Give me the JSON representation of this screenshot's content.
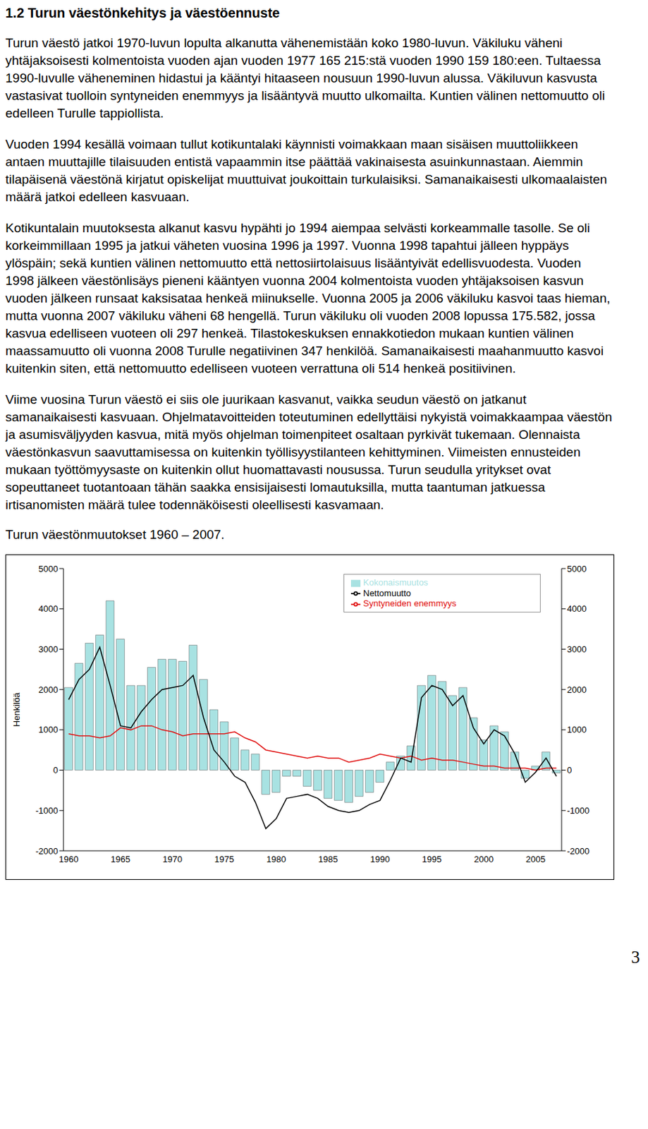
{
  "heading": "1.2 Turun väestönkehitys ja väestöennuste",
  "paragraphs": [
    "Turun väestö jatkoi 1970-luvun lopulta alkanutta vähenemistään koko 1980-luvun. Väkiluku väheni yhtäjaksoisesti kolmentoista vuoden ajan vuoden 1977 165 215:stä vuoden 1990 159 180:een. Tultaessa 1990-luvulle väheneminen hidastui ja kääntyi hitaaseen nousuun 1990-luvun alussa. Väkiluvun kasvusta vastasivat tuolloin syntyneiden enemmyys ja lisääntyvä muutto ulkomailta. Kuntien välinen nettomuutto oli edelleen Turulle tappiollista.",
    "Vuoden 1994 kesällä voimaan tullut kotikuntalaki käynnisti voimakkaan maan sisäisen muuttoliikkeen antaen muuttajille tilaisuuden entistä vapaammin itse päättää vakinaisesta asuinkunnastaan. Aiemmin tilapäisenä väestönä kirjatut opiskelijat muuttuivat joukoittain turkulaisiksi. Samanaikaisesti ulkomaalaisten määrä jatkoi edelleen kasvuaan.",
    "Kotikuntalain muutoksesta alkanut kasvu hypähti jo 1994 aiempaa selvästi korkeammalle tasolle. Se oli korkeimmillaan 1995 ja jatkui väheten vuosina 1996 ja 1997. Vuonna 1998 tapahtui jälleen hyppäys ylöspäin; sekä kuntien välinen nettomuutto että nettosiirtolaisuus lisääntyivät edellisvuodesta. Vuoden 1998 jälkeen väestönlisäys pieneni kääntyen vuonna 2004 kolmentoista vuoden yhtäjaksoisen kasvun vuoden jälkeen runsaat kaksisataa henkeä miinukselle. Vuonna 2005 ja 2006 väkiluku kasvoi taas hieman, mutta vuonna 2007 väkiluku väheni 68 hengellä. Turun väkiluku oli vuoden 2008 lopussa 175.582, jossa kasvua edelliseen vuoteen oli 297 henkeä. Tilastokeskuksen ennakkotiedon mukaan kuntien välinen maassamuutto oli vuonna 2008 Turulle negatiivinen 347 henkilöä. Samanaikaisesti maahanmuutto kasvoi kuitenkin siten, että nettomuutto edelliseen vuoteen verrattuna oli 514 henkeä positiivinen.",
    "Viime vuosina Turun väestö ei siis ole juurikaan kasvanut, vaikka seudun väestö on jatkanut samanaikaisesti kasvuaan. Ohjelmatavoitteiden toteutuminen edellyttäisi nykyistä voimakkaampaa väestön ja asumisväljyyden kasvua, mitä myös ohjelman toimenpiteet osaltaan pyrkivät tukemaan. Olennaista väestönkasvun saavuttamisessa on kuitenkin työllisyystilanteen kehittyminen. Viimeisten ennusteiden mukaan työttömyysaste on kuitenkin ollut huomattavasti nousussa. Turun seudulla yritykset ovat sopeuttaneet tuotantoaan tähän saakka ensisijaisesti lomautuksilla, mutta taantuman jatkuessa irtisanomisten määrä tulee todennäköisesti oleellisesti kasvamaan."
  ],
  "chart_caption": "Turun väestönmuutokset 1960 – 2007.",
  "chart_data": {
    "type": "bar",
    "x": [
      1960,
      1961,
      1962,
      1963,
      1964,
      1965,
      1966,
      1967,
      1968,
      1969,
      1970,
      1971,
      1972,
      1973,
      1974,
      1975,
      1976,
      1977,
      1978,
      1979,
      1980,
      1981,
      1982,
      1983,
      1984,
      1985,
      1986,
      1987,
      1988,
      1989,
      1990,
      1991,
      1992,
      1993,
      1994,
      1995,
      1996,
      1997,
      1998,
      1999,
      2000,
      2001,
      2002,
      2003,
      2004,
      2005,
      2006,
      2007
    ],
    "xticks": [
      1960,
      1965,
      1970,
      1975,
      1980,
      1985,
      1990,
      1995,
      2000,
      2005
    ],
    "ylim": [
      -2000,
      5000
    ],
    "yticks": [
      -2000,
      -1000,
      0,
      1000,
      2000,
      3000,
      4000,
      5000
    ],
    "y2lim": [
      -2000,
      5000
    ],
    "y2ticks": [
      -2000,
      -1000,
      0,
      1000,
      2000,
      3000,
      4000,
      5000
    ],
    "y_label": "Henkilöä",
    "legend": "top-right",
    "series": [
      {
        "name": "Kokonaismuutos",
        "type": "bar",
        "color": "#a8e2e2",
        "values": [
          2050,
          2650,
          3150,
          3350,
          4200,
          3250,
          2100,
          2100,
          2550,
          2750,
          2750,
          2700,
          3100,
          2250,
          1500,
          1200,
          800,
          500,
          400,
          -600,
          -550,
          -150,
          -150,
          -400,
          -500,
          -700,
          -750,
          -800,
          -650,
          -550,
          -300,
          200,
          350,
          600,
          2100,
          2350,
          2200,
          1850,
          2050,
          1300,
          750,
          1100,
          950,
          450,
          -200,
          100,
          450,
          -70
        ]
      },
      {
        "name": "Syntyneiden enemmyys",
        "type": "line",
        "color": "#e01010",
        "axis": "y2",
        "values": [
          900,
          850,
          850,
          800,
          850,
          1050,
          1000,
          1100,
          1100,
          1000,
          950,
          850,
          900,
          900,
          900,
          900,
          950,
          800,
          700,
          500,
          450,
          400,
          350,
          300,
          350,
          300,
          300,
          200,
          250,
          300,
          400,
          350,
          300,
          350,
          250,
          300,
          250,
          250,
          200,
          150,
          100,
          100,
          50,
          50,
          50,
          0,
          50,
          50
        ]
      },
      {
        "name": "Nettomuutto",
        "type": "line",
        "color": "#000000",
        "values": [
          1750,
          2250,
          2500,
          3050,
          2100,
          1100,
          1050,
          1450,
          1750,
          2000,
          2050,
          2100,
          2350,
          1300,
          500,
          200,
          -150,
          -300,
          -800,
          -1450,
          -1200,
          -700,
          -650,
          -600,
          -700,
          -900,
          -1000,
          -1050,
          -1000,
          -850,
          -750,
          -250,
          300,
          200,
          1800,
          2100,
          2000,
          1600,
          1850,
          1050,
          650,
          1000,
          850,
          400,
          -300,
          -50,
          300,
          -150
        ]
      }
    ]
  },
  "page_number": "3"
}
